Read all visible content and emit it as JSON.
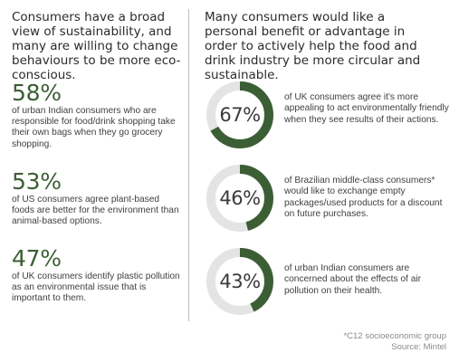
{
  "left": {
    "heading": "Consumers have a broad view of sustainability, and many are willing to change behaviours to be more eco-conscious.",
    "stats": [
      {
        "value": "58%",
        "text": "of urban Indian consumers who are responsible for food/drink shopping take their own bags when they go grocery shopping."
      },
      {
        "value": "53%",
        "text": "of US consumers agree plant-based foods are better for the environment than animal-based options."
      },
      {
        "value": "47%",
        "text": "of UK consumers identify plastic pollution as an environmental issue that is important to them."
      }
    ]
  },
  "right": {
    "heading": "Many consumers would like a personal benefit or advantage in order to actively help the food and drink industry be more circular and sustainable.",
    "rings": [
      {
        "value": "67%",
        "percent": 67,
        "text": "of UK consumers agree it's more appealing to act environmentally friendly when they see results of their actions."
      },
      {
        "value": "46%",
        "percent": 46,
        "text": "of Brazilian middle-class consumers* would like to exchange empty packages/used products for a discount on future purchases."
      },
      {
        "value": "43%",
        "percent": 43,
        "text": "of urban Indian consumers are concerned about the effects of air pollution on their health."
      }
    ]
  },
  "footnote": {
    "line1": "*C12 socioeconomic group",
    "line2": "Source: Mintel"
  },
  "colors": {
    "accent": "#3c5e35",
    "track": "#e4e4e4"
  }
}
